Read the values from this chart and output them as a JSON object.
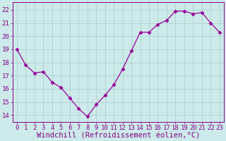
{
  "x": [
    0,
    1,
    2,
    3,
    4,
    5,
    6,
    7,
    8,
    9,
    10,
    11,
    12,
    13,
    14,
    15,
    16,
    17,
    18,
    19,
    20,
    21,
    22,
    23
  ],
  "y": [
    19.0,
    17.8,
    17.2,
    17.3,
    16.5,
    16.1,
    15.3,
    14.5,
    13.9,
    14.8,
    15.5,
    16.3,
    17.5,
    18.9,
    20.3,
    20.3,
    20.9,
    21.2,
    21.9,
    21.9,
    21.7,
    21.8,
    21.0,
    20.3
  ],
  "line_color": "#990099",
  "marker": "D",
  "marker_size": 2.5,
  "bg_color": "#cceaea",
  "grid_color": "#aacccc",
  "xlabel": "Windchill (Refroidissement éolien,°C)",
  "xlabel_color": "#880088",
  "xlabel_fontsize": 7.5,
  "ylabel_ticks": [
    14,
    15,
    16,
    17,
    18,
    19,
    20,
    21,
    22
  ],
  "xlim": [
    -0.5,
    23.5
  ],
  "ylim": [
    13.5,
    22.6
  ],
  "tick_fontsize": 6.5,
  "tick_color": "#880088",
  "axis_color": "#880088"
}
